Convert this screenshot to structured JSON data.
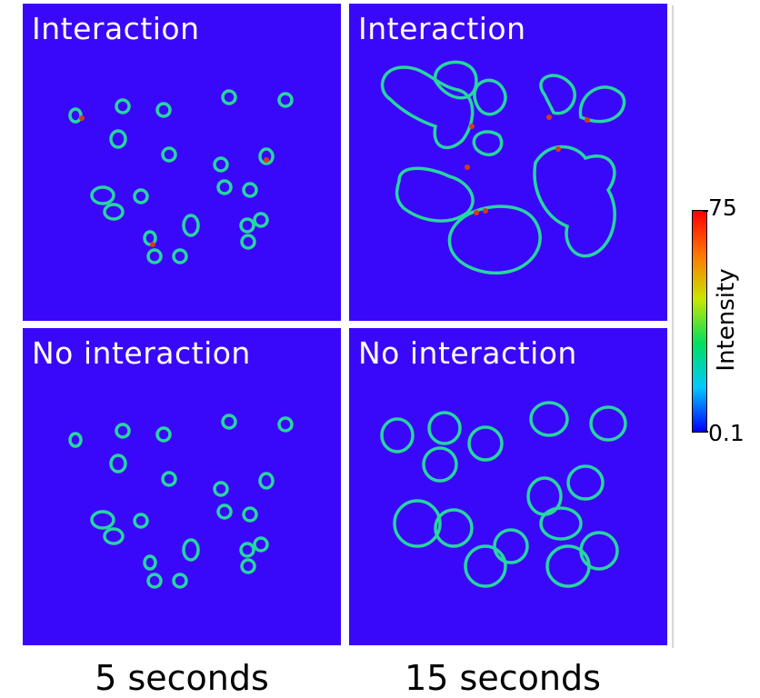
{
  "panels": [
    {
      "label": "Interaction"
    },
    {
      "label": "Interaction"
    },
    {
      "label": "No interaction"
    },
    {
      "label": "No interaction"
    }
  ],
  "time_labels": [
    "5 seconds",
    "15 seconds"
  ],
  "colorbar": {
    "title": "Intensity",
    "max_label": "75",
    "min_label": "0.1",
    "colors": [
      "#0000ff",
      "#00c8ff",
      "#00e060",
      "#c8e600",
      "#ff7800",
      "#ff0000"
    ]
  },
  "colors": {
    "background": "#3a08f8",
    "ring": "#27d6a0",
    "ring_hot": "#d63a1a"
  }
}
